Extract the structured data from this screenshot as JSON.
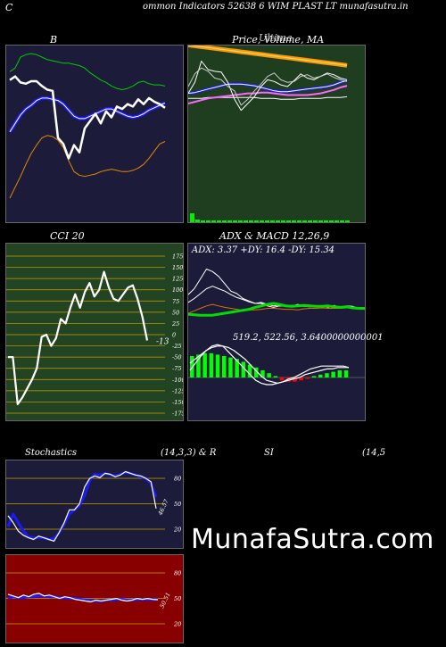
{
  "header": {
    "letter": "C",
    "text": "ommon  Indicators 52638                6  WIM PLAST LT munafasutra.in"
  },
  "watermark": "MunafaSutra.com",
  "colors": {
    "bb_bg": "#1c1c3a",
    "price_bg": "#1f3d1f",
    "cci_bg": "#224422",
    "adx_bg": "#1c1c3a",
    "stoch_bg": "#1c1c3a",
    "rsi_bg": "#880000"
  },
  "panels": {
    "bb": {
      "title": "B"
    },
    "price": {
      "title": "Price,  Volume,  MA",
      "title_overlay": "Ultima"
    },
    "cci": {
      "title": "CCI 20",
      "ticks": [
        "175",
        "150",
        "125",
        "100",
        "75",
        "50",
        "25",
        "0",
        "-25",
        "-50",
        "-75",
        "-100",
        "-125",
        "-150",
        "-175"
      ],
      "tick_values": [
        175,
        150,
        125,
        100,
        75,
        50,
        25,
        0,
        -25,
        -50,
        -75,
        -100,
        -125,
        -150,
        -175
      ],
      "current_label": "-13"
    },
    "adx": {
      "title": "ADX  & MACD 12,26,9",
      "values_text": "ADX: 3.37 +DY: 16.4  -DY: 15.34",
      "macd_text": "519.2,  522.56,  3.6400000000001"
    },
    "stoch": {
      "title_left": "Stochastics",
      "title_mid": "(14,3,3) & R",
      "title_rsi": "SI",
      "title_right": "(14,5",
      "ticks": [
        "80",
        "50",
        "20"
      ],
      "tick_values": [
        80,
        50,
        20
      ],
      "current_label": "46.57"
    },
    "rsi": {
      "ticks": [
        "80",
        "50",
        "20"
      ],
      "tick_values": [
        80,
        50,
        20
      ],
      "current_label": "50.51"
    }
  },
  "chart_data": [
    {
      "type": "line",
      "name": "bollinger",
      "series": [
        {
          "values": [
            125,
            128,
            137,
            139,
            140,
            139,
            137,
            135,
            134,
            133,
            132,
            132,
            131,
            130,
            128,
            124,
            121,
            118,
            116,
            113,
            111,
            110,
            111,
            113,
            116,
            117,
            115,
            114,
            114,
            113
          ]
        },
        {
          "values": [
            75,
            82,
            89,
            94,
            97,
            101,
            103,
            103,
            102,
            101,
            98,
            93,
            88,
            86,
            86,
            88,
            90,
            92,
            94,
            94,
            92,
            90,
            88,
            87,
            88,
            90,
            93,
            95,
            97,
            99
          ]
        },
        {
          "values": [
            20,
            29,
            38,
            48,
            57,
            64,
            70,
            72,
            71,
            68,
            62,
            51,
            42,
            39,
            38,
            39,
            40,
            42,
            43,
            44,
            43,
            42,
            42,
            43,
            45,
            48,
            53,
            59,
            65,
            67
          ]
        },
        {
          "values": [
            118,
            121,
            116,
            115,
            117,
            117,
            113,
            110,
            109,
            70,
            65,
            53,
            64,
            58,
            78,
            84,
            90,
            82,
            92,
            87,
            96,
            94,
            98,
            96,
            102,
            98,
            103,
            100,
            98,
            95
          ]
        }
      ]
    },
    {
      "type": "line",
      "name": "price-volume-ma",
      "series": [
        {
          "values": [
            209,
            208,
            207,
            206,
            205,
            204,
            203,
            202,
            201,
            200,
            199,
            198,
            197,
            196,
            195,
            194,
            193,
            192,
            191,
            190,
            189,
            188,
            187,
            186,
            185
          ]
        },
        {
          "values": [
            146,
            146,
            146,
            147,
            147,
            147,
            147,
            147,
            147,
            147,
            147,
            146,
            146,
            146,
            145,
            145,
            145,
            146,
            146,
            146,
            146,
            147,
            147,
            147,
            148
          ]
        },
        {
          "values": [
            152,
            153,
            155,
            157,
            159,
            161,
            163,
            163,
            163,
            162,
            161,
            159,
            157,
            155,
            154,
            154,
            155,
            156,
            157,
            158,
            159,
            160,
            162,
            165,
            167
          ]
        },
        {
          "values": [
            140,
            142,
            144,
            146,
            147,
            148,
            149,
            150,
            151,
            152,
            152,
            153,
            153,
            152,
            151,
            150,
            150,
            150,
            150,
            151,
            152,
            154,
            156,
            159,
            161
          ]
        },
        {
          "values": [
            152,
            165,
            190,
            180,
            178,
            177,
            165,
            145,
            132,
            140,
            148,
            160,
            168,
            166,
            162,
            160,
            167,
            175,
            170,
            168,
            172,
            176,
            174,
            170,
            168
          ]
        },
        {
          "values": [
            160,
            175,
            182,
            178,
            170,
            168,
            160,
            155,
            138,
            145,
            155,
            163,
            172,
            176,
            168,
            165,
            166,
            172,
            174,
            170,
            172,
            175,
            171,
            168,
            166
          ]
        }
      ],
      "volume": [
        10,
        3,
        2,
        2,
        2,
        2,
        2,
        2,
        2,
        2,
        2,
        2,
        2,
        2,
        2,
        2,
        2,
        2,
        2,
        2,
        2,
        2,
        2,
        2,
        2,
        2,
        2,
        2,
        2,
        2
      ]
    },
    {
      "type": "line",
      "name": "cci-20",
      "ylim": [
        -175,
        175
      ],
      "series": [
        {
          "values": [
            -50,
            -50,
            -155,
            -140,
            -120,
            -100,
            -75,
            -5,
            0,
            -25,
            -8,
            35,
            25,
            60,
            90,
            60,
            95,
            115,
            85,
            100,
            140,
            105,
            80,
            75,
            90,
            105,
            110,
            80,
            40,
            -13
          ]
        }
      ]
    },
    {
      "type": "line",
      "name": "adx-macd",
      "adx_series": [
        {
          "values": [
            78,
            90,
            110,
            130,
            125,
            115,
            100,
            85,
            80,
            70,
            65,
            60,
            62,
            58,
            55,
            57,
            56,
            55,
            58,
            55,
            54,
            53,
            54,
            52,
            56,
            50,
            55,
            54,
            50,
            48
          ]
        },
        {
          "values": [
            62,
            70,
            80,
            90,
            95,
            90,
            85,
            78,
            72,
            68,
            63,
            60,
            60,
            55,
            52,
            55,
            54,
            56,
            56,
            54,
            53,
            55,
            54,
            53,
            55,
            52,
            53,
            52,
            50,
            48
          ]
        },
        {
          "values": [
            40,
            45,
            50,
            55,
            58,
            55,
            52,
            50,
            48,
            46,
            47,
            47,
            48,
            50,
            50,
            49,
            48,
            48,
            47,
            49,
            50,
            50,
            51,
            50,
            50,
            50,
            51,
            51,
            50,
            49
          ]
        },
        {
          "values": [
            38,
            37,
            36,
            36,
            36,
            38,
            40,
            42,
            44,
            46,
            48,
            52,
            55,
            58,
            60,
            58,
            55,
            54,
            55,
            56,
            55,
            54,
            54,
            55,
            53,
            52,
            53,
            51,
            50,
            50
          ]
        }
      ],
      "macd_histogram": [
        15,
        16,
        17,
        17,
        16,
        15,
        14,
        13,
        11,
        9,
        7,
        5,
        3,
        1,
        -2,
        -3,
        -3,
        -2,
        -1,
        1,
        2,
        3,
        4,
        5,
        5,
        5,
        5,
        5,
        5,
        4
      ],
      "macd_series": [
        {
          "values": [
            5,
            10,
            15,
            19,
            22,
            23,
            22,
            18,
            14,
            10,
            6,
            2,
            -2,
            -4,
            -5,
            -5,
            -4,
            -3,
            -1,
            0,
            2,
            4,
            6,
            7,
            8,
            8,
            8,
            8,
            8,
            7
          ]
        },
        {
          "values": [
            10,
            13,
            16,
            19,
            21,
            22,
            22,
            21,
            19,
            16,
            13,
            9,
            5,
            1,
            -2,
            -3,
            -4,
            -3,
            -2,
            -1,
            0,
            2,
            3,
            4,
            5,
            6,
            6,
            7,
            7,
            7
          ]
        }
      ]
    },
    {
      "type": "line",
      "name": "stochastics",
      "ylim": [
        0,
        100
      ],
      "series": [
        {
          "values": [
            38,
            30,
            20,
            15,
            12,
            10,
            14,
            12,
            10,
            8,
            18,
            30,
            45,
            45,
            52,
            72,
            82,
            85,
            83,
            88,
            87,
            84,
            86,
            90,
            88,
            86,
            85,
            82,
            78,
            46.57
          ]
        },
        {
          "values": [
            25,
            40,
            30,
            20,
            13,
            12,
            12,
            12,
            10,
            11,
            18,
            28,
            40,
            45,
            50,
            62,
            80,
            87,
            86,
            88,
            86,
            85,
            87,
            89,
            88,
            86,
            84,
            82,
            76,
            60
          ]
        }
      ]
    },
    {
      "type": "line",
      "name": "rsi",
      "ylim": [
        0,
        100
      ],
      "series": [
        {
          "values": [
            57,
            55,
            53,
            56,
            54,
            57,
            58,
            55,
            56,
            54,
            52,
            54,
            53,
            51,
            50,
            49,
            48,
            50,
            49,
            50,
            51,
            52,
            50,
            49,
            50,
            52,
            51,
            52,
            51,
            50.51
          ]
        },
        {
          "values": [
            52,
            54,
            53,
            53,
            54,
            54,
            55,
            55,
            54,
            54,
            53,
            53,
            52,
            52,
            51,
            50,
            50,
            49,
            49,
            50,
            50,
            51,
            51,
            50,
            50,
            51,
            51,
            51,
            51,
            51
          ]
        }
      ]
    }
  ]
}
